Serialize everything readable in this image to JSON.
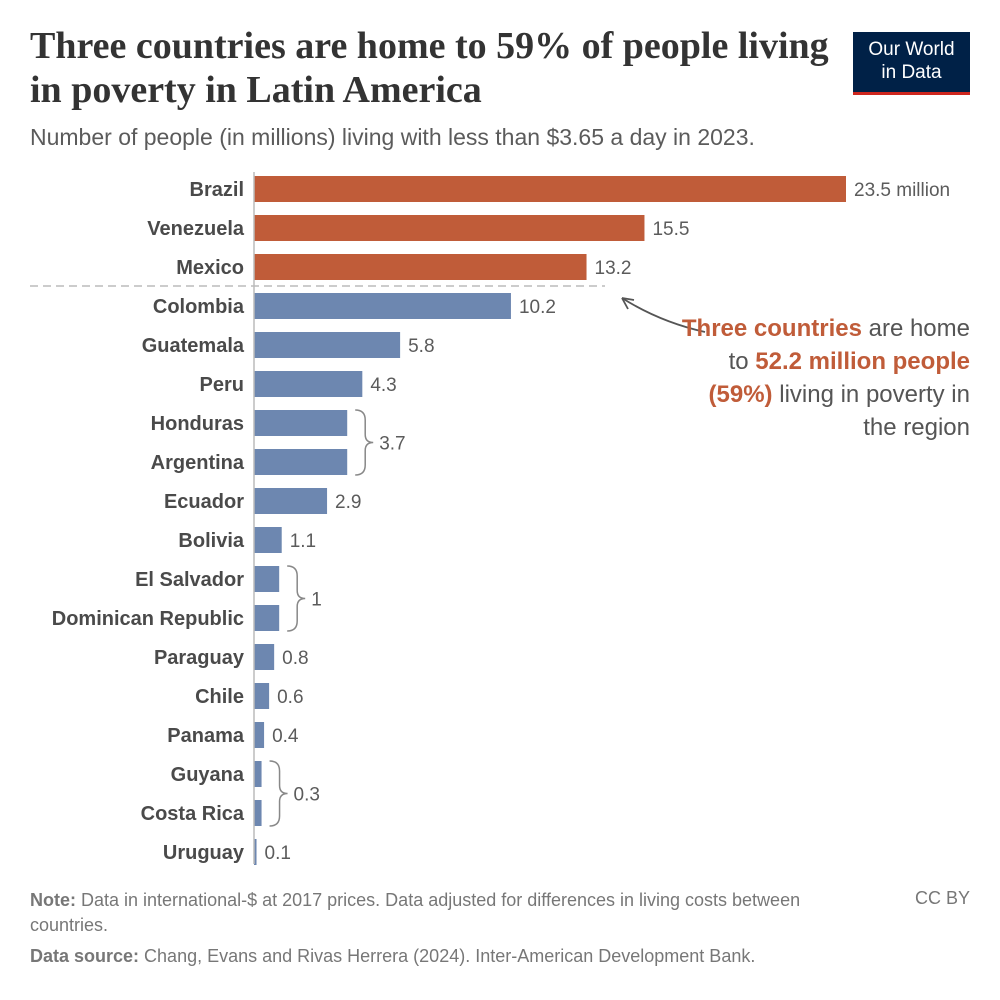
{
  "header": {
    "title": "Three countries are home to 59% of people living in poverty in Latin America",
    "subtitle": "Number of people (in millions) living with less than $3.65 a day in 2023.",
    "logo_line1": "Our World",
    "logo_line2": "in Data"
  },
  "chart_data": {
    "type": "bar",
    "orientation": "horizontal",
    "title": "Three countries are home to 59% of people living in poverty in Latin America",
    "unit": "million",
    "categories": [
      "Brazil",
      "Venezuela",
      "Mexico",
      "Colombia",
      "Guatemala",
      "Peru",
      "Honduras",
      "Argentina",
      "Ecuador",
      "Bolivia",
      "El Salvador",
      "Dominican Republic",
      "Paraguay",
      "Chile",
      "Panama",
      "Guyana",
      "Costa Rica",
      "Uruguay"
    ],
    "values": [
      23.5,
      15.5,
      13.2,
      10.2,
      5.8,
      4.3,
      3.7,
      3.7,
      2.9,
      1.1,
      1,
      1,
      0.8,
      0.6,
      0.4,
      0.3,
      0.3,
      0.1
    ],
    "labels": [
      "23.5 million",
      "15.5",
      "13.2",
      "10.2",
      "5.8",
      "4.3",
      null,
      null,
      "2.9",
      "1.1",
      null,
      null,
      "0.8",
      "0.6",
      "0.4",
      null,
      null,
      "0.1"
    ],
    "highlight_count": 3,
    "groups": [
      {
        "start": 6,
        "end": 7,
        "label": "3.7"
      },
      {
        "start": 10,
        "end": 11,
        "label": "1"
      },
      {
        "start": 15,
        "end": 16,
        "label": "0.3"
      }
    ],
    "colors": {
      "highlight": "#c05c39",
      "default": "#6d87b0"
    },
    "xlim": [
      0,
      23.5
    ]
  },
  "annotation": {
    "part1": "Three countries",
    "part2": " are home to ",
    "part3": "52.2 million people (59%)",
    "part4": " living in poverty in the region"
  },
  "footer": {
    "note_label": "Note:",
    "note": " Data in international-$ at 2017 prices. Data adjusted for differences in living costs between countries.",
    "license": "CC BY",
    "source_label": "Data source:",
    "source": " Chang, Evans and Rivas Herrera (2024). Inter-American Development Bank."
  }
}
